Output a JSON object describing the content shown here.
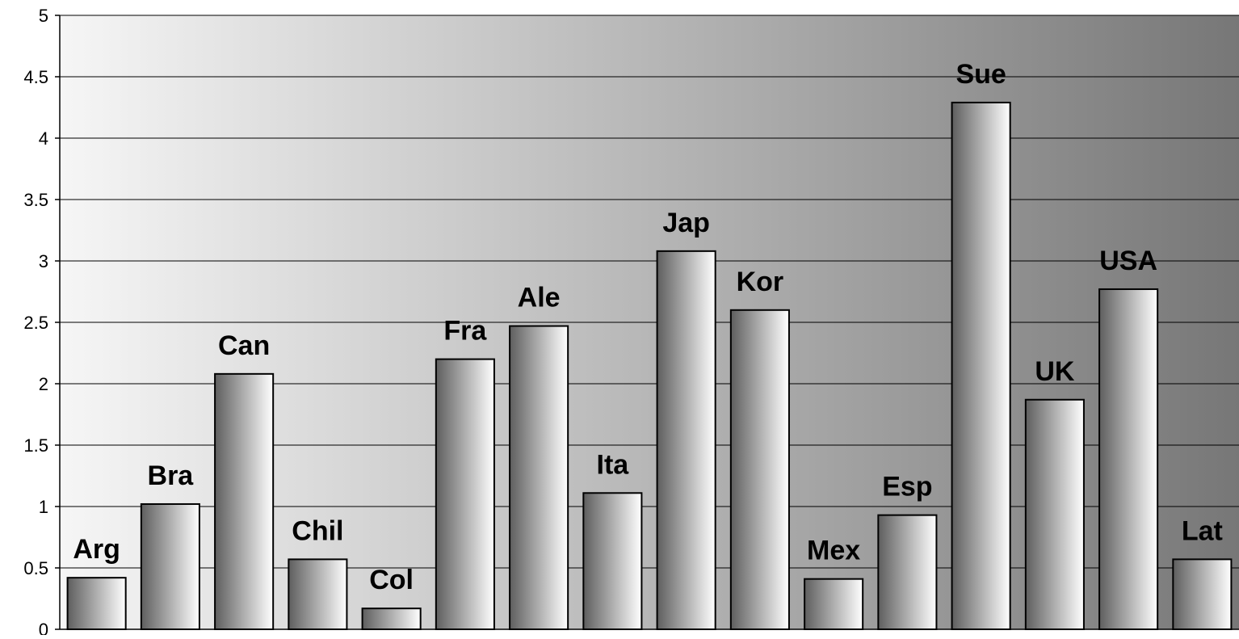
{
  "chart_data": {
    "type": "bar",
    "categories": [
      "Arg",
      "Bra",
      "Can",
      "Chil",
      "Col",
      "Fra",
      "Ale",
      "Ita",
      "Jap",
      "Kor",
      "Mex",
      "Esp",
      "Sue",
      "UK",
      "USA",
      "Lat"
    ],
    "values": [
      0.42,
      1.02,
      2.08,
      0.57,
      0.17,
      2.2,
      2.47,
      1.11,
      3.08,
      2.6,
      0.41,
      0.93,
      4.29,
      1.87,
      2.77,
      0.57
    ],
    "title": "",
    "xlabel": "",
    "ylabel": "",
    "ylim": [
      0,
      5
    ],
    "yticks": [
      "0",
      "0.5",
      "1",
      "1.5",
      "2",
      "2.5",
      "3",
      "3.5",
      "4",
      "4.5",
      "5"
    ],
    "grid": "horizontal",
    "legend": "none",
    "data_labels": "category names above bars",
    "colors": {
      "plot_background_light": "#f6f6f6",
      "plot_background_dark": "#777777",
      "bar_dark": "#5e5e5e",
      "bar_light": "#ffffff",
      "bar_outline": "#000000",
      "grid": "#000000",
      "text": "#000000"
    }
  }
}
